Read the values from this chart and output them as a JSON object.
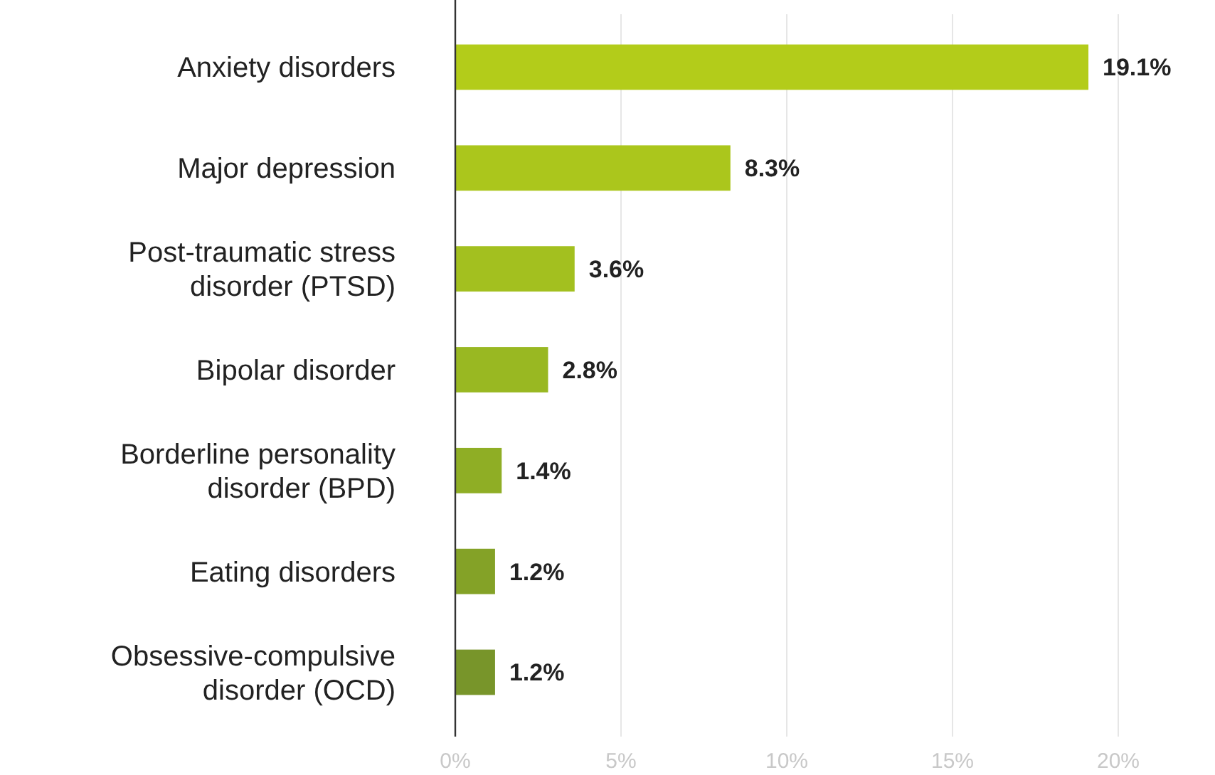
{
  "chart_data": {
    "type": "bar",
    "orientation": "horizontal",
    "categories": [
      "Anxiety disorders",
      "Major depression",
      "Post-traumatic stress disorder (PTSD)",
      "Bipolar disorder",
      "Borderline personality disorder (BPD)",
      "Eating disorders",
      "Obsessive-compulsive disorder (OCD)"
    ],
    "values": [
      19.1,
      8.3,
      3.6,
      2.8,
      1.4,
      1.2,
      1.2
    ],
    "colors": [
      "#b3cc1a",
      "#abc61c",
      "#a3c01f",
      "#99b822",
      "#8fae25",
      "#84a227",
      "#78952a"
    ],
    "value_labels": [
      "19.1%",
      "8.3%",
      "3.6%",
      "2.8%",
      "1.4%",
      "1.2%",
      "1.2%"
    ],
    "xlim": [
      0,
      20
    ],
    "xticks": [
      {
        "value": 0,
        "label": "0%"
      },
      {
        "value": 5,
        "label": "5%"
      },
      {
        "value": 10,
        "label": "10%"
      },
      {
        "value": 15,
        "label": "15%"
      },
      {
        "value": 20,
        "label": "20%"
      }
    ],
    "grid": "x"
  }
}
